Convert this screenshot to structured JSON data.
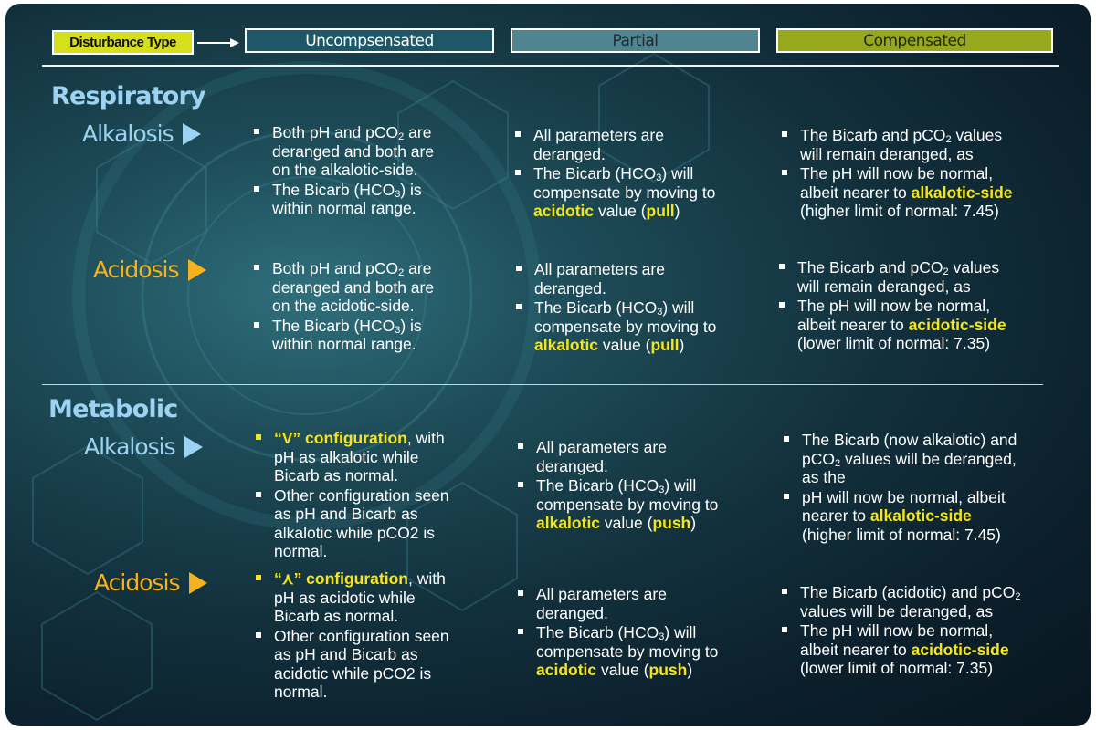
{
  "header": {
    "key_label": "Disturbance Type",
    "uncompensated": "Uncompsensated",
    "partial": "Partial",
    "compensated": "Compensated"
  },
  "colors": {
    "key_box": "#d6df1c",
    "uncompensated": "#1e5868",
    "partial": "#4f8591",
    "compensated": "#97a81f",
    "highlight": "#f5e51c",
    "alkalosis": "#9dd3f2",
    "acidosis": "#f5b21c"
  },
  "sections": {
    "respiratory": "Respiratory",
    "metabolic": "Metabolic"
  },
  "rows": {
    "alkalosis": "Alkalosis",
    "acidosis": "Acidosis"
  },
  "text": {
    "both_ph_pco2": "Both pH and pCO",
    "sub2": "2",
    "sub3": "3",
    "are": " are",
    "deranged_both_are": "deranged and both are",
    "on_alkalotic_side": "on the alkalotic-side.",
    "on_acidotic_side": "on the acidotic-side.",
    "bicarb_hco": "The Bicarb (HCO",
    "close_is": ")  is",
    "close_will": ")  will",
    "within_normal": "within normal range.",
    "all_params_are": "All parameters are",
    "deranged": "deranged.",
    "compensate_moving": "compensate by moving to",
    "acidotic": "acidotic",
    "alkalotic": "alkalotic",
    "value_open": " value (",
    "value_open2": "  value (",
    "pull": "pull",
    "push": "push",
    "close_paren": ")",
    "bicarb_and_pco": "The Bicarb and pCO",
    "values": " values",
    "remain_deranged_as": "will remain deranged, as",
    "ph_now_normal": "The pH will now be normal,",
    "albeit_nearer": "albeit nearer to ",
    "alkalotic_side": "alkalotic-side",
    "acidotic_side": "acidotic-side",
    "higher_limit": "(higher limit of normal: 7.45)",
    "lower_limit": "(lower limit of normal: 7.35)",
    "v_config": "“V” configuration",
    "caret_config": "“⋏” configuration",
    "with": ", with",
    "ph_as_alkalotic": "pH as alkalotic while",
    "ph_as_acidotic": "pH as acidotic while",
    "bicarb_as_normal": "Bicarb as normal.",
    "other_config": "Other configuration seen",
    "as_ph_bicarb_as": "as pH and Bicarb as",
    "alkalotic_while_pco2": "alkalotic while pCO2 is",
    "acidotic_while_pco2": "acidotic while pCO2 is",
    "normal_dot": "normal.",
    "bicarb_now_alkalotic": "The Bicarb (now alkalotic) and",
    "pco": "pCO",
    "values_will_be_deranged": " values will be deranged,",
    "as_the": "as the",
    "ph_now_normal_albeit": "pH will now be normal, albeit",
    "nearer_to": "nearer to ",
    "bicarb_acidotic_and_pco": "The Bicarb (acidotic) and pCO",
    "values_deranged_as": "values will be deranged, as"
  }
}
